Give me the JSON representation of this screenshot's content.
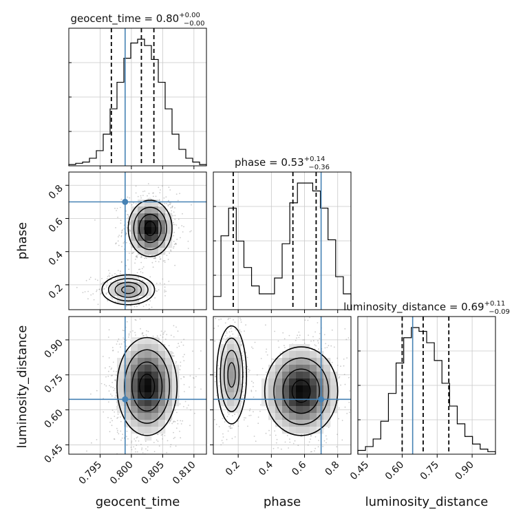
{
  "chart_data": {
    "type": "corner",
    "truth_color": "#4682b4",
    "parameters": [
      {
        "name": "geocent_time",
        "range": [
          0.79,
          0.812
        ],
        "ticks": [
          0.795,
          0.8,
          0.805,
          0.81
        ],
        "tick_labels": [
          "0.795",
          "0.800",
          "0.805",
          "0.810"
        ],
        "truth": 0.799,
        "quantiles": [
          0.7968,
          0.8016,
          0.8036
        ]
      },
      {
        "name": "phase",
        "range": [
          0.05,
          0.88
        ],
        "ticks": [
          0.2,
          0.4,
          0.6,
          0.8
        ],
        "tick_labels": [
          "0.2",
          "0.4",
          "0.6",
          "0.8"
        ],
        "truth": 0.7,
        "quantiles": [
          0.17,
          0.53,
          0.67
        ]
      },
      {
        "name": "luminosity_distance",
        "range": [
          0.41,
          1.0
        ],
        "ticks": [
          0.45,
          0.6,
          0.75,
          0.9
        ],
        "tick_labels": [
          "0.45",
          "0.60",
          "0.75",
          "0.90"
        ],
        "truth": 0.645,
        "quantiles": [
          0.6,
          0.69,
          0.8
        ]
      }
    ],
    "titles": [
      {
        "param": "geocent_time",
        "prefix": "geocent_time = 0.80",
        "sup": "+0.00",
        "sub": "−0.00"
      },
      {
        "param": "phase",
        "prefix": "phase = 0.53",
        "sup": "+0.14",
        "sub": "−0.36"
      },
      {
        "param": "luminosity_distance",
        "prefix": "luminosity_distance = 0.69",
        "sup": "+0.11",
        "sub": "−0.09"
      }
    ],
    "histograms": [
      {
        "param": "geocent_time",
        "counts": [
          1,
          2,
          3,
          6,
          12,
          25,
          45,
          66,
          85,
          97,
          100,
          95,
          84,
          66,
          45,
          25,
          13,
          6,
          3,
          1
        ]
      },
      {
        "param": "phase",
        "counts": [
          10,
          56,
          77,
          52,
          32,
          18,
          12,
          12,
          24,
          50,
          81,
          96,
          96,
          90,
          77,
          53,
          25,
          12
        ]
      },
      {
        "param": "luminosity_distance",
        "counts": [
          3,
          6,
          12,
          26,
          48,
          72,
          92,
          100,
          97,
          88,
          74,
          56,
          38,
          24,
          14,
          8,
          4,
          2
        ]
      }
    ],
    "pair_modes": [
      {
        "x": "geocent_time",
        "y": "phase",
        "modes": [
          {
            "cx": 0.803,
            "cy": 0.54,
            "sx": 0.00175,
            "sy": 0.085,
            "w": 1.0
          },
          {
            "cx": 0.7995,
            "cy": 0.17,
            "sx": 0.0021,
            "sy": 0.045,
            "w": 0.42
          }
        ]
      },
      {
        "x": "geocent_time",
        "y": "luminosity_distance",
        "modes": [
          {
            "cx": 0.8025,
            "cy": 0.7,
            "sx": 0.0024,
            "sy": 0.105,
            "w": 1.0
          }
        ]
      },
      {
        "x": "phase",
        "y": "luminosity_distance",
        "modes": [
          {
            "cx": 0.58,
            "cy": 0.68,
            "sx": 0.11,
            "sy": 0.095,
            "w": 1.0
          },
          {
            "cx": 0.16,
            "cy": 0.75,
            "sx": 0.045,
            "sy": 0.105,
            "w": 0.45
          }
        ]
      }
    ]
  }
}
